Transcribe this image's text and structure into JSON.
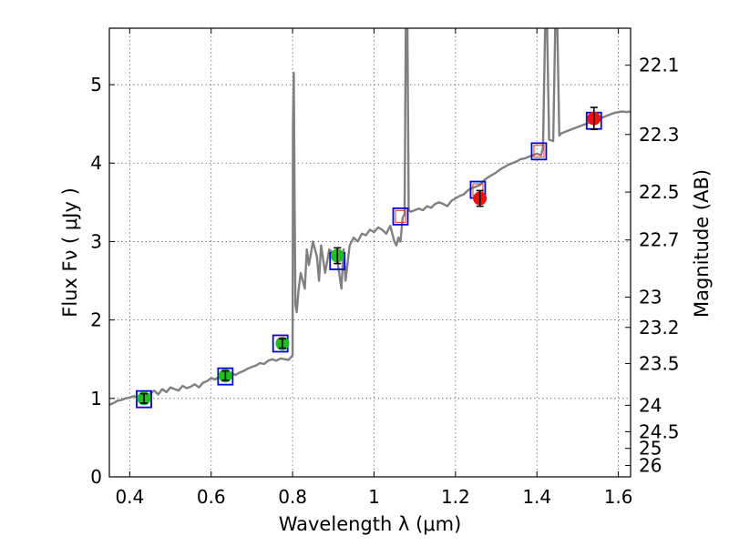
{
  "chart_data": {
    "type": "line",
    "xlabel": "Wavelength  λ (μm)",
    "ylabel": "Flux  Fν  ( μJy )",
    "y2label": "Magnitude (AB)",
    "xlim": [
      0.35,
      1.63
    ],
    "ylim": [
      0,
      5.72
    ],
    "grid": true,
    "x_ticks": [
      0.4,
      0.6,
      0.8,
      1.0,
      1.2,
      1.4,
      1.6
    ],
    "x_tick_labels": [
      "0.4",
      "0.6",
      "0.8",
      "1",
      "1.2",
      "1.4",
      "1.6"
    ],
    "y_ticks": [
      0,
      1,
      2,
      3,
      4,
      5
    ],
    "y_tick_labels": [
      "0",
      "1",
      "2",
      "3",
      "4",
      "5"
    ],
    "mag_ticks": [
      22.1,
      22.3,
      22.5,
      22.7,
      23,
      23.2,
      23.5,
      24,
      24.5,
      25,
      26
    ],
    "mag_tick_labels": [
      "22.1",
      "22.3",
      "22.5",
      "22.7",
      "23",
      "23.2",
      "23.5",
      "24",
      "24.5",
      "25",
      "26"
    ],
    "colors": {
      "model": "#808080",
      "optical_points": "#22bb22",
      "nir_points": "#ee1111",
      "model_box": "#0000dd",
      "model_box_inner": "#dd3333",
      "errorbar": "#000000"
    },
    "series": [
      {
        "type": "line",
        "x": [
          0.35,
          0.36,
          0.37,
          0.38,
          0.39,
          0.4,
          0.41,
          0.42,
          0.43,
          0.44,
          0.45,
          0.46,
          0.47,
          0.48,
          0.49,
          0.5,
          0.51,
          0.52,
          0.53,
          0.54,
          0.55,
          0.56,
          0.57,
          0.58,
          0.59,
          0.6,
          0.61,
          0.62,
          0.63,
          0.64,
          0.65,
          0.66,
          0.67,
          0.68,
          0.69,
          0.7,
          0.71,
          0.72,
          0.73,
          0.74,
          0.75,
          0.76,
          0.77,
          0.78,
          0.79,
          0.8,
          0.801,
          0.803,
          0.805,
          0.807,
          0.81,
          0.815,
          0.82,
          0.83,
          0.835,
          0.84,
          0.85,
          0.86,
          0.865,
          0.87,
          0.88,
          0.89,
          0.9,
          0.91,
          0.92,
          0.925,
          0.93,
          0.94,
          0.95,
          0.96,
          0.97,
          0.98,
          0.99,
          1.0,
          1.01,
          1.02,
          1.03,
          1.04,
          1.05,
          1.055,
          1.06,
          1.065,
          1.07,
          1.075,
          1.078,
          1.08,
          1.082,
          1.085,
          1.09,
          1.1,
          1.11,
          1.12,
          1.13,
          1.14,
          1.15,
          1.16,
          1.17,
          1.18,
          1.19,
          1.2,
          1.21,
          1.22,
          1.23,
          1.24,
          1.25,
          1.26,
          1.27,
          1.28,
          1.29,
          1.3,
          1.31,
          1.32,
          1.33,
          1.34,
          1.35,
          1.36,
          1.37,
          1.38,
          1.39,
          1.4,
          1.41,
          1.415,
          1.42,
          1.425,
          1.43,
          1.44,
          1.445,
          1.45,
          1.455,
          1.46,
          1.47,
          1.48,
          1.49,
          1.5,
          1.51,
          1.52,
          1.53,
          1.54,
          1.55,
          1.56,
          1.57,
          1.58,
          1.59,
          1.6,
          1.61,
          1.62,
          1.63
        ],
        "y": [
          0.92,
          0.94,
          0.97,
          0.98,
          1.0,
          1.01,
          1.03,
          1.01,
          1.04,
          1.0,
          1.06,
          1.1,
          1.05,
          1.12,
          1.08,
          1.14,
          1.12,
          1.1,
          1.16,
          1.13,
          1.15,
          1.18,
          1.14,
          1.2,
          1.22,
          1.26,
          1.24,
          1.28,
          1.25,
          1.3,
          1.32,
          1.3,
          1.33,
          1.35,
          1.38,
          1.4,
          1.42,
          1.45,
          1.44,
          1.48,
          1.5,
          1.48,
          1.51,
          1.5,
          1.49,
          1.55,
          4.5,
          5.15,
          3.5,
          2.2,
          2.1,
          2.4,
          2.6,
          2.4,
          2.9,
          2.7,
          3.0,
          2.8,
          2.5,
          2.95,
          2.6,
          2.9,
          2.85,
          2.75,
          2.4,
          2.9,
          2.5,
          2.95,
          3.05,
          3.0,
          3.1,
          3.08,
          3.15,
          3.12,
          3.18,
          3.15,
          3.1,
          3.2,
          3.0,
          2.95,
          3.05,
          3.0,
          3.3,
          3.35,
          5.72,
          5.72,
          5.72,
          3.4,
          3.38,
          3.4,
          3.42,
          3.4,
          3.45,
          3.43,
          3.48,
          3.5,
          3.48,
          3.45,
          3.52,
          3.55,
          3.58,
          3.6,
          3.65,
          3.68,
          3.7,
          3.72,
          3.78,
          3.82,
          3.85,
          3.88,
          3.92,
          3.95,
          3.98,
          4.0,
          4.02,
          4.05,
          4.06,
          4.08,
          4.1,
          4.12,
          4.1,
          4.2,
          5.72,
          5.72,
          4.3,
          4.28,
          5.72,
          5.72,
          4.35,
          4.38,
          4.4,
          4.42,
          4.44,
          4.46,
          4.48,
          4.5,
          4.52,
          4.55,
          4.56,
          4.58,
          4.6,
          4.62,
          4.64,
          4.65,
          4.66,
          4.65,
          4.66
        ],
        "color": "#808080"
      },
      {
        "type": "scatter",
        "x": [
          0.435,
          0.635,
          0.775,
          0.91
        ],
        "y": [
          1.0,
          1.29,
          1.7,
          2.82
        ],
        "yerr": [
          0.06,
          0.06,
          0.06,
          0.1
        ],
        "color": "#22bb22"
      },
      {
        "type": "scatter",
        "x": [
          1.26,
          1.54
        ],
        "y": [
          3.55,
          4.57
        ],
        "yerr": [
          0.1,
          0.14
        ],
        "color": "#ee1111"
      },
      {
        "type": "box",
        "x": [
          0.435,
          0.635,
          0.77,
          0.91,
          1.065,
          1.255,
          1.405,
          1.54
        ],
        "y": [
          0.99,
          1.28,
          1.7,
          2.75,
          3.32,
          3.66,
          4.15,
          4.54
        ],
        "color": "#0000dd"
      }
    ]
  }
}
